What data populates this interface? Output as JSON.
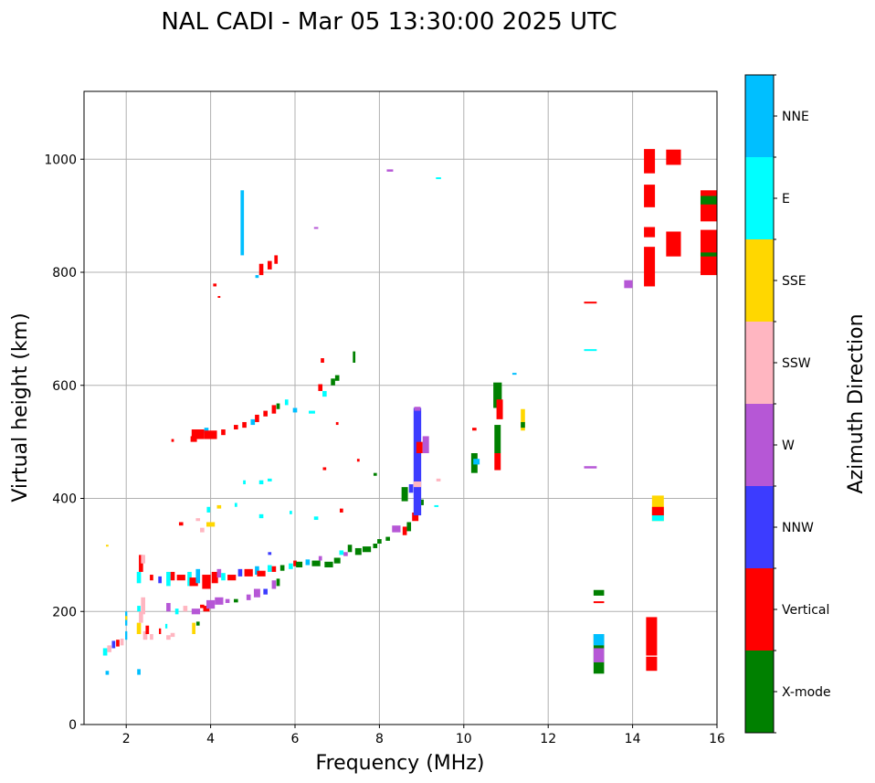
{
  "chart_data": {
    "type": "scatter",
    "title": "NAL CADI - Mar 05 13:30:00 2025 UTC",
    "xlabel": "Frequency (MHz)",
    "ylabel": "Virtual height (km)",
    "xlim": [
      1,
      16
    ],
    "ylim": [
      0,
      1120
    ],
    "xticks": [
      2,
      4,
      6,
      8,
      10,
      12,
      14,
      16
    ],
    "yticks": [
      0,
      200,
      400,
      600,
      800,
      1000
    ],
    "grid": true,
    "colorbar": {
      "label": "Azimuth Direction",
      "position": "right",
      "categories": [
        "X-mode",
        "Vertical",
        "NNW",
        "W",
        "SSW",
        "SSE",
        "E",
        "NNE"
      ],
      "colors": [
        "#008000",
        "#ff0000",
        "#3c3cff",
        "#b657d6",
        "#ffb6c1",
        "#ffd700",
        "#00ffff",
        "#00bfff"
      ]
    },
    "point_format": "[frequency_MHz, height_low_km, height_high_km, category_index, freq_width_MHz]",
    "points": [
      [
        1.55,
        88,
        95,
        7,
        0.08
      ],
      [
        1.5,
        122,
        135,
        6,
        0.1
      ],
      [
        1.6,
        128,
        140,
        4,
        0.1
      ],
      [
        1.7,
        135,
        148,
        2,
        0.08
      ],
      [
        1.8,
        138,
        150,
        1,
        0.08
      ],
      [
        1.9,
        140,
        152,
        4,
        0.08
      ],
      [
        2.0,
        150,
        165,
        7,
        0.05
      ],
      [
        2.0,
        175,
        200,
        7,
        0.05
      ],
      [
        2.0,
        185,
        192,
        5,
        0.05
      ],
      [
        1.55,
        315,
        318,
        5,
        0.06
      ],
      [
        2.3,
        88,
        98,
        7,
        0.08
      ],
      [
        2.3,
        160,
        180,
        5,
        0.1
      ],
      [
        2.35,
        180,
        200,
        4,
        0.1
      ],
      [
        2.4,
        195,
        225,
        4,
        0.1
      ],
      [
        2.3,
        200,
        210,
        6,
        0.08
      ],
      [
        2.45,
        150,
        165,
        4,
        0.1
      ],
      [
        2.5,
        160,
        175,
        1,
        0.08
      ],
      [
        2.6,
        150,
        160,
        4,
        0.08
      ],
      [
        2.8,
        160,
        170,
        1,
        0.05
      ],
      [
        3.0,
        150,
        158,
        4,
        0.1
      ],
      [
        3.1,
        155,
        162,
        4,
        0.1
      ],
      [
        2.95,
        170,
        178,
        6,
        0.05
      ],
      [
        3.0,
        200,
        215,
        3,
        0.1
      ],
      [
        3.2,
        195,
        205,
        6,
        0.08
      ],
      [
        3.4,
        200,
        210,
        4,
        0.1
      ],
      [
        3.6,
        160,
        180,
        5,
        0.08
      ],
      [
        3.7,
        175,
        182,
        0,
        0.08
      ],
      [
        3.65,
        195,
        205,
        3,
        0.2
      ],
      [
        3.9,
        200,
        210,
        1,
        0.15
      ],
      [
        4.0,
        205,
        220,
        3,
        0.2
      ],
      [
        4.2,
        212,
        225,
        3,
        0.2
      ],
      [
        4.4,
        215,
        222,
        3,
        0.1
      ],
      [
        4.6,
        216,
        222,
        0,
        0.1
      ],
      [
        4.9,
        220,
        230,
        3,
        0.1
      ],
      [
        5.1,
        225,
        240,
        3,
        0.15
      ],
      [
        5.3,
        230,
        240,
        2,
        0.1
      ],
      [
        5.5,
        240,
        255,
        3,
        0.1
      ],
      [
        5.6,
        245,
        258,
        0,
        0.08
      ],
      [
        3.8,
        206,
        212,
        1,
        0.1
      ],
      [
        2.3,
        250,
        270,
        6,
        0.1
      ],
      [
        2.35,
        270,
        300,
        1,
        0.1
      ],
      [
        2.4,
        285,
        300,
        4,
        0.1
      ],
      [
        2.6,
        255,
        265,
        1,
        0.08
      ],
      [
        2.8,
        250,
        262,
        2,
        0.08
      ],
      [
        3.0,
        245,
        270,
        6,
        0.1
      ],
      [
        3.1,
        255,
        270,
        1,
        0.1
      ],
      [
        3.3,
        255,
        265,
        1,
        0.2
      ],
      [
        3.5,
        245,
        270,
        6,
        0.1
      ],
      [
        3.6,
        245,
        260,
        1,
        0.2
      ],
      [
        3.7,
        250,
        275,
        7,
        0.1
      ],
      [
        3.9,
        240,
        265,
        1,
        0.2
      ],
      [
        4.1,
        250,
        270,
        1,
        0.15
      ],
      [
        4.2,
        260,
        275,
        3,
        0.1
      ],
      [
        4.3,
        255,
        268,
        6,
        0.1
      ],
      [
        4.5,
        255,
        265,
        1,
        0.2
      ],
      [
        4.7,
        262,
        275,
        2,
        0.1
      ],
      [
        4.9,
        262,
        275,
        1,
        0.2
      ],
      [
        5.1,
        265,
        280,
        7,
        0.1
      ],
      [
        5.2,
        262,
        272,
        1,
        0.2
      ],
      [
        5.4,
        270,
        282,
        6,
        0.1
      ],
      [
        5.5,
        270,
        280,
        1,
        0.1
      ],
      [
        5.7,
        272,
        282,
        0,
        0.1
      ],
      [
        5.9,
        275,
        285,
        6,
        0.1
      ],
      [
        6.0,
        280,
        290,
        1,
        0.08
      ],
      [
        6.1,
        278,
        288,
        0,
        0.15
      ],
      [
        6.3,
        282,
        292,
        7,
        0.1
      ],
      [
        6.5,
        280,
        290,
        0,
        0.2
      ],
      [
        6.6,
        290,
        298,
        3,
        0.08
      ],
      [
        6.8,
        278,
        288,
        0,
        0.2
      ],
      [
        7.0,
        285,
        295,
        0,
        0.15
      ],
      [
        7.1,
        300,
        308,
        6,
        0.1
      ],
      [
        7.2,
        298,
        305,
        3,
        0.1
      ],
      [
        7.3,
        305,
        318,
        0,
        0.1
      ],
      [
        7.5,
        300,
        312,
        0,
        0.15
      ],
      [
        7.7,
        305,
        315,
        0,
        0.2
      ],
      [
        7.9,
        312,
        320,
        0,
        0.1
      ],
      [
        8.0,
        320,
        328,
        0,
        0.1
      ],
      [
        8.2,
        325,
        332,
        0,
        0.1
      ],
      [
        8.4,
        340,
        352,
        3,
        0.2
      ],
      [
        8.6,
        335,
        350,
        1,
        0.1
      ],
      [
        8.7,
        342,
        358,
        0,
        0.1
      ],
      [
        8.85,
        360,
        375,
        1,
        0.15
      ],
      [
        9.0,
        388,
        398,
        0,
        0.1
      ],
      [
        8.6,
        395,
        420,
        0,
        0.15
      ],
      [
        8.75,
        410,
        425,
        2,
        0.1
      ],
      [
        9.35,
        385,
        388,
        6,
        0.1
      ],
      [
        3.3,
        352,
        358,
        1,
        0.1
      ],
      [
        3.7,
        360,
        365,
        4,
        0.1
      ],
      [
        3.8,
        340,
        348,
        4,
        0.1
      ],
      [
        4.0,
        350,
        358,
        5,
        0.2
      ],
      [
        3.95,
        375,
        385,
        6,
        0.08
      ],
      [
        4.2,
        382,
        388,
        5,
        0.1
      ],
      [
        4.6,
        385,
        392,
        6,
        0.06
      ],
      [
        5.2,
        365,
        372,
        6,
        0.1
      ],
      [
        5.4,
        300,
        305,
        2,
        0.08
      ],
      [
        5.9,
        372,
        378,
        6,
        0.06
      ],
      [
        6.5,
        362,
        368,
        6,
        0.1
      ],
      [
        7.1,
        375,
        382,
        1,
        0.08
      ],
      [
        4.8,
        425,
        432,
        6,
        0.06
      ],
      [
        5.2,
        425,
        432,
        6,
        0.1
      ],
      [
        5.4,
        430,
        435,
        6,
        0.1
      ],
      [
        3.6,
        500,
        510,
        1,
        0.15
      ],
      [
        3.7,
        505,
        522,
        1,
        0.3
      ],
      [
        3.9,
        515,
        525,
        7,
        0.1
      ],
      [
        4.0,
        505,
        520,
        1,
        0.3
      ],
      [
        4.3,
        512,
        522,
        1,
        0.1
      ],
      [
        4.6,
        522,
        530,
        1,
        0.1
      ],
      [
        4.8,
        525,
        535,
        1,
        0.1
      ],
      [
        5.0,
        530,
        540,
        7,
        0.1
      ],
      [
        5.1,
        535,
        548,
        1,
        0.1
      ],
      [
        5.3,
        545,
        555,
        1,
        0.1
      ],
      [
        5.5,
        550,
        565,
        1,
        0.1
      ],
      [
        5.6,
        558,
        568,
        0,
        0.08
      ],
      [
        5.8,
        565,
        575,
        6,
        0.08
      ],
      [
        6.0,
        552,
        560,
        7,
        0.1
      ],
      [
        6.4,
        550,
        555,
        6,
        0.15
      ],
      [
        6.6,
        590,
        602,
        1,
        0.1
      ],
      [
        6.7,
        580,
        590,
        6,
        0.1
      ],
      [
        6.65,
        640,
        648,
        1,
        0.08
      ],
      [
        6.9,
        600,
        612,
        0,
        0.1
      ],
      [
        7.0,
        608,
        618,
        0,
        0.1
      ],
      [
        7.4,
        640,
        660,
        0,
        0.06
      ],
      [
        3.1,
        500,
        505,
        1,
        0.06
      ],
      [
        4.1,
        775,
        780,
        1,
        0.08
      ],
      [
        4.2,
        755,
        758,
        1,
        0.06
      ],
      [
        4.75,
        830,
        945,
        7,
        0.08
      ],
      [
        5.2,
        795,
        815,
        1,
        0.1
      ],
      [
        5.4,
        805,
        820,
        1,
        0.1
      ],
      [
        5.1,
        790,
        795,
        7,
        0.08
      ],
      [
        5.55,
        815,
        830,
        1,
        0.08
      ],
      [
        6.5,
        878,
        880,
        3,
        0.1
      ],
      [
        8.25,
        978,
        982,
        3,
        0.15
      ],
      [
        9.4,
        965,
        968,
        6,
        0.12
      ],
      [
        6.7,
        450,
        455,
        1,
        0.08
      ],
      [
        7.5,
        465,
        470,
        1,
        0.06
      ],
      [
        7.0,
        530,
        535,
        1,
        0.06
      ],
      [
        7.9,
        440,
        445,
        0,
        0.08
      ],
      [
        9.4,
        430,
        435,
        4,
        0.1
      ],
      [
        8.9,
        370,
        560,
        2,
        0.18
      ],
      [
        8.95,
        480,
        500,
        1,
        0.15
      ],
      [
        9.1,
        480,
        510,
        3,
        0.15
      ],
      [
        8.9,
        420,
        430,
        4,
        0.18
      ],
      [
        8.9,
        555,
        562,
        3,
        0.15
      ],
      [
        10.25,
        445,
        480,
        0,
        0.15
      ],
      [
        10.3,
        460,
        470,
        7,
        0.15
      ],
      [
        10.25,
        520,
        525,
        1,
        0.1
      ],
      [
        10.8,
        450,
        480,
        1,
        0.15
      ],
      [
        10.8,
        480,
        530,
        0,
        0.15
      ],
      [
        10.8,
        560,
        605,
        0,
        0.2
      ],
      [
        10.85,
        540,
        575,
        1,
        0.15
      ],
      [
        11.2,
        620,
        622,
        7,
        0.1
      ],
      [
        11.4,
        520,
        558,
        5,
        0.1
      ],
      [
        11.4,
        525,
        535,
        0,
        0.1
      ],
      [
        13.0,
        745,
        748,
        1,
        0.3
      ],
      [
        13.0,
        662,
        664,
        6,
        0.3
      ],
      [
        13.0,
        453,
        457,
        3,
        0.3
      ],
      [
        13.9,
        772,
        786,
        3,
        0.2
      ],
      [
        13.2,
        215,
        218,
        1,
        0.25
      ],
      [
        13.2,
        228,
        238,
        0,
        0.25
      ],
      [
        13.2,
        90,
        160,
        0,
        0.25
      ],
      [
        13.2,
        110,
        135,
        3,
        0.25
      ],
      [
        13.2,
        140,
        160,
        7,
        0.25
      ],
      [
        14.6,
        360,
        405,
        5,
        0.28
      ],
      [
        14.6,
        360,
        380,
        6,
        0.28
      ],
      [
        14.6,
        370,
        385,
        1,
        0.28
      ],
      [
        14.45,
        95,
        120,
        1,
        0.26
      ],
      [
        14.45,
        122,
        190,
        1,
        0.26
      ],
      [
        14.4,
        975,
        1018,
        1,
        0.26
      ],
      [
        14.4,
        915,
        955,
        1,
        0.26
      ],
      [
        14.4,
        862,
        880,
        1,
        0.26
      ],
      [
        14.4,
        775,
        845,
        1,
        0.26
      ],
      [
        14.97,
        990,
        1017,
        1,
        0.35
      ],
      [
        14.97,
        828,
        872,
        1,
        0.35
      ],
      [
        15.8,
        890,
        945,
        1,
        0.38
      ],
      [
        15.8,
        920,
        935,
        0,
        0.38
      ],
      [
        15.8,
        795,
        875,
        1,
        0.38
      ],
      [
        15.8,
        828,
        835,
        0,
        0.38
      ]
    ]
  }
}
